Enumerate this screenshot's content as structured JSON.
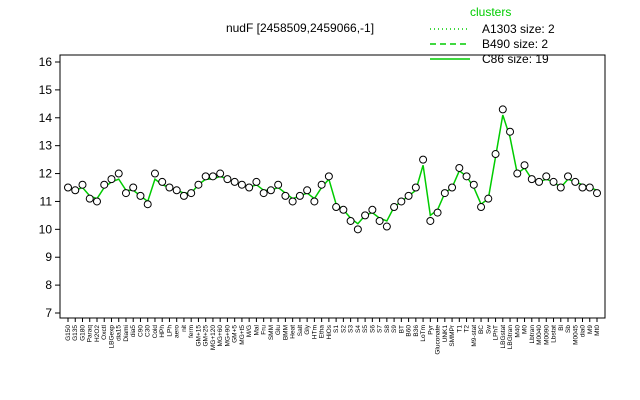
{
  "chart_data": {
    "type": "line",
    "title": "nudF [2458509,2459066,-1]",
    "categories": [
      "G150",
      "G135",
      "G180",
      "Paraq",
      "H2O2",
      "Oxctl",
      "LBGexp",
      "dia15",
      "Diami",
      "dia5",
      "C90",
      "C30",
      "Cold",
      "HPh",
      "LPh",
      "aero",
      "nit",
      "ferm",
      "GM+15",
      "GM+25",
      "MG+120",
      "MG+60",
      "MG+90",
      "GM+5",
      "MG+t5",
      "M/G",
      "Mal",
      "Fru",
      "SMM",
      "Glu",
      "BMM",
      "Heat",
      "Salt",
      "Gly",
      "HTm",
      "Etha",
      "HiOs",
      "S1",
      "S2",
      "S3",
      "S4",
      "S5",
      "S6",
      "S7",
      "S8",
      "S9",
      "BT",
      "B60",
      "B36",
      "LoTm",
      "Pyr",
      "Gluconate",
      "UNK1",
      "SMMPr",
      "T1",
      "T2",
      "M9-stat",
      "BC",
      "Sw",
      "LPhT",
      "LBGstat",
      "LBGtran",
      "M40",
      "M0",
      "Lbtran",
      "M0040",
      "M0090",
      "Lbstat",
      "Bl",
      "Sb",
      "M0045",
      "dia0",
      "M9",
      "Mt0"
    ],
    "values": [
      11.5,
      11.4,
      11.6,
      11.1,
      11.0,
      11.6,
      11.8,
      12.0,
      11.3,
      11.5,
      11.2,
      10.9,
      12.0,
      11.7,
      11.5,
      11.4,
      11.2,
      11.3,
      11.6,
      11.9,
      11.9,
      12.0,
      11.8,
      11.7,
      11.6,
      11.5,
      11.7,
      11.3,
      11.4,
      11.6,
      11.2,
      11.0,
      11.2,
      11.4,
      11.0,
      11.6,
      11.9,
      10.8,
      10.7,
      10.3,
      10.0,
      10.5,
      10.7,
      10.3,
      10.1,
      10.8,
      11.0,
      11.2,
      11.5,
      12.5,
      10.3,
      10.6,
      11.3,
      11.5,
      12.2,
      11.9,
      11.6,
      10.8,
      11.1,
      12.7,
      14.3,
      13.5,
      12.0,
      12.3,
      11.8,
      11.7,
      11.9,
      11.7,
      11.5,
      11.9,
      11.7,
      11.5,
      11.5,
      11.3
    ],
    "color": "#000000",
    "line": {
      "color": "#00cc00",
      "values": [
        11.5,
        11.4,
        11.5,
        11.2,
        11.1,
        11.5,
        11.7,
        11.8,
        11.4,
        11.4,
        11.2,
        11.0,
        11.8,
        11.6,
        11.5,
        11.4,
        11.3,
        11.3,
        11.6,
        11.8,
        11.8,
        11.9,
        11.8,
        11.7,
        11.6,
        11.5,
        11.6,
        11.4,
        11.4,
        11.5,
        11.3,
        11.1,
        11.2,
        11.3,
        11.1,
        11.5,
        11.8,
        10.9,
        10.7,
        10.4,
        10.2,
        10.5,
        10.6,
        10.4,
        10.3,
        10.8,
        11.0,
        11.2,
        11.4,
        12.3,
        10.5,
        10.7,
        11.3,
        11.5,
        12.1,
        11.9,
        11.5,
        10.9,
        11.1,
        12.6,
        14.1,
        13.3,
        12.0,
        12.2,
        11.8,
        11.7,
        11.8,
        11.7,
        11.5,
        11.8,
        11.7,
        11.6,
        11.5,
        11.4
      ]
    },
    "legend": {
      "title": "clusters",
      "color": "#00cc00",
      "entries": [
        {
          "label": "A1303 size: 2",
          "dash": "1,3"
        },
        {
          "label": "B490 size: 2",
          "dash": "6,4"
        },
        {
          "label": "C86 size: 19",
          "dash": "none"
        }
      ]
    },
    "ylim": [
      7,
      16
    ],
    "yticks": [
      7,
      8,
      9,
      10,
      11,
      12,
      13,
      14,
      15,
      16
    ]
  }
}
